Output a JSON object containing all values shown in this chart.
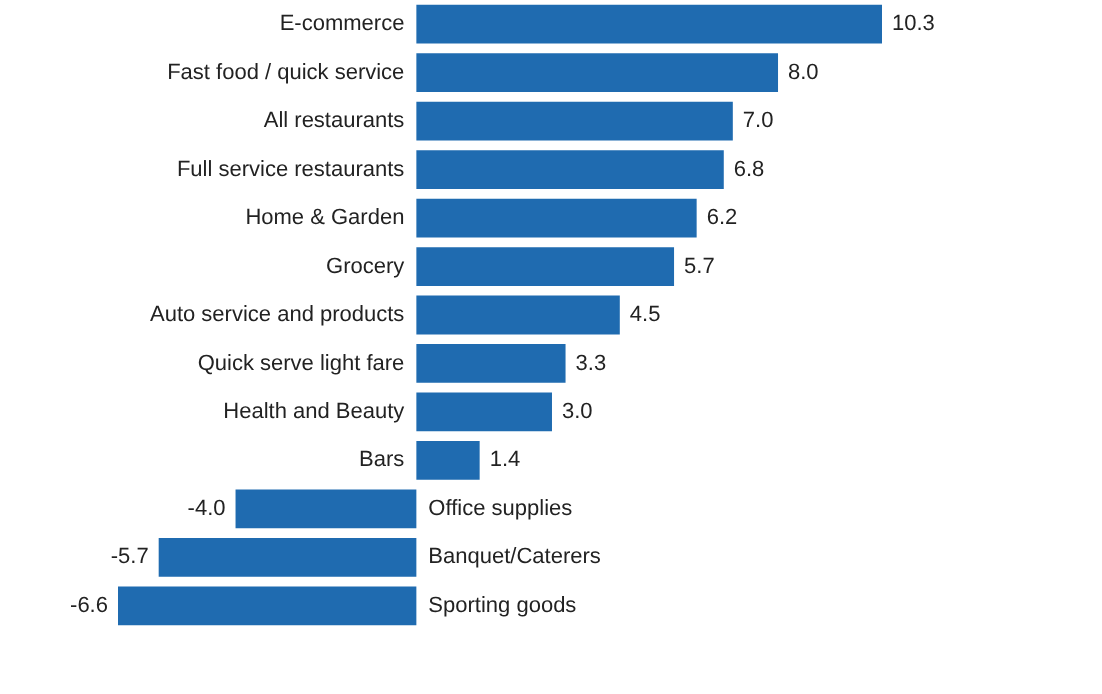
{
  "chart_data": {
    "type": "bar",
    "orientation": "horizontal",
    "categories": [
      "E-commerce",
      "Fast food / quick service",
      "All restaurants",
      "Full service restaurants",
      "Home & Garden",
      "Grocery",
      "Auto service and products",
      "Quick serve light fare",
      "Health and Beauty",
      "Bars",
      "Office supplies",
      "Banquet/Caterers",
      "Sporting goods"
    ],
    "values": [
      10.3,
      8.0,
      7.0,
      6.8,
      6.2,
      5.7,
      4.5,
      3.3,
      3.0,
      1.4,
      -4.0,
      -5.7,
      -6.6
    ],
    "value_labels": [
      "10.3",
      "8.0",
      "7.0",
      "6.8",
      "6.2",
      "5.7",
      "4.5",
      "3.3",
      "3.0",
      "1.4",
      "-4.0",
      "-5.7",
      "-6.6"
    ],
    "color": "#1f6bb0"
  }
}
